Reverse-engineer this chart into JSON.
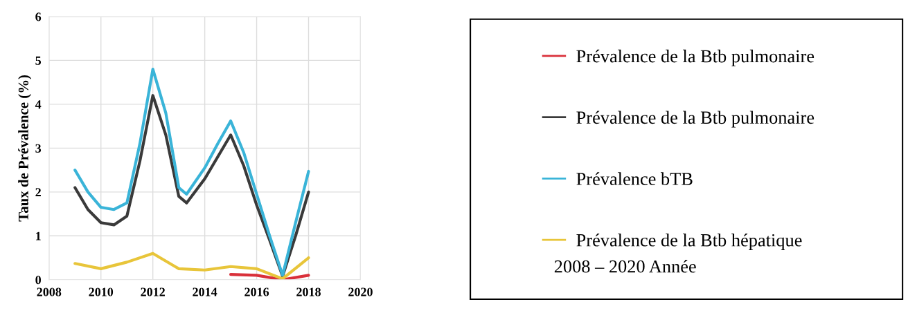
{
  "chart_data": {
    "type": "line",
    "ylabel": "Taux de Prévalence (%)",
    "xlim": [
      2008,
      2020
    ],
    "xticks": [
      2008,
      2010,
      2012,
      2014,
      2016,
      2018,
      2020
    ],
    "ylim": [
      0,
      6
    ],
    "yticks": [
      0,
      1,
      2,
      3,
      4,
      5,
      6
    ],
    "grid": true,
    "legend": "right",
    "marker": "none",
    "line_style": "solid",
    "series": [
      {
        "name": "Prévalence de la Btb pulmonaire",
        "color": "#d9303a",
        "x": [
          2015,
          2016,
          2017,
          2018
        ],
        "values": [
          0.12,
          0.1,
          0.0,
          0.1
        ]
      },
      {
        "name": "Prévalence de la Btb pulmonaire",
        "color": "#3a3a3a",
        "x": [
          2009,
          2009.5,
          2010,
          2010.5,
          2011,
          2011.5,
          2012,
          2012.5,
          2013,
          2013.3,
          2014,
          2014.5,
          2015,
          2015.5,
          2016,
          2016.5,
          2017,
          2017.5,
          2018
        ],
        "values": [
          2.1,
          1.6,
          1.3,
          1.25,
          1.45,
          2.7,
          4.2,
          3.3,
          1.9,
          1.75,
          2.3,
          2.8,
          3.3,
          2.6,
          1.7,
          0.9,
          0.08,
          1.0,
          2.0
        ]
      },
      {
        "name": "Prévalence bTB",
        "color": "#3ab4d8",
        "x": [
          2009,
          2009.5,
          2010,
          2010.5,
          2011,
          2011.5,
          2012,
          2012.5,
          2013,
          2013.3,
          2014,
          2014.5,
          2015,
          2015.5,
          2016,
          2016.5,
          2017,
          2017.5,
          2018
        ],
        "values": [
          2.5,
          2.0,
          1.65,
          1.6,
          1.75,
          3.1,
          4.8,
          3.8,
          2.1,
          1.95,
          2.55,
          3.1,
          3.62,
          2.9,
          1.95,
          1.0,
          0.1,
          1.3,
          2.47
        ]
      },
      {
        "name": "Prévalence de la Btb hépatique",
        "color": "#e8c53a",
        "x": [
          2009,
          2010,
          2011,
          2012,
          2013,
          2014,
          2015,
          2016,
          2017,
          2018
        ],
        "values": [
          0.37,
          0.25,
          0.4,
          0.6,
          0.25,
          0.22,
          0.3,
          0.25,
          0.02,
          0.5
        ]
      }
    ],
    "annotations": [
      "2008 – 2020 Année"
    ]
  }
}
